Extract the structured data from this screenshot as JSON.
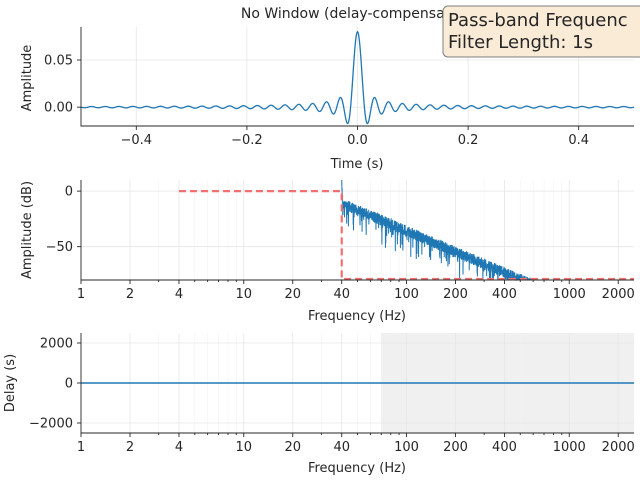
{
  "title": "No Window (delay-compensated)",
  "annotation": [
    "Pass-band Frequenc",
    "Filter Length: 1s"
  ],
  "colors": {
    "signal": "#1f77b4",
    "ideal": "#f07070",
    "shade": "#f0f0f0",
    "annotation_bg": "#faebd7"
  },
  "chart_data": [
    {
      "type": "line",
      "name": "impulse-response",
      "xlabel": "Time (s)",
      "ylabel": "Amplitude",
      "xlim": [
        -0.5,
        0.5
      ],
      "ylim": [
        -0.02,
        0.085
      ],
      "xticks": [
        -0.4,
        -0.2,
        0.0,
        0.2,
        0.4
      ],
      "xtick_labels": [
        "−0.4",
        "−0.2",
        "0.0",
        "0.2",
        "0.4"
      ],
      "yticks": [
        0.0,
        0.05
      ],
      "ytick_labels": [
        "0.00",
        "0.05"
      ],
      "peak": 0.08,
      "cutoff_hz": 40,
      "grid": true
    },
    {
      "type": "line",
      "name": "frequency-response",
      "xlabel": "Frequency (Hz)",
      "ylabel": "Amplitude (dB)",
      "xscale": "log",
      "xlim": [
        1,
        2500
      ],
      "ylim": [
        -80,
        10
      ],
      "xticks": [
        1,
        2,
        4,
        10,
        20,
        40,
        100,
        200,
        400,
        1000,
        2000
      ],
      "xtick_labels": [
        "1",
        "2",
        "4",
        "10",
        "20",
        "40",
        "100",
        "200",
        "400",
        "1000",
        "2000"
      ],
      "yticks": [
        0,
        -50
      ],
      "ytick_labels": [
        "0",
        "−50"
      ],
      "ideal": {
        "x": [
          4,
          40,
          40,
          2500
        ],
        "y": [
          0,
          0,
          -80,
          -80
        ]
      },
      "grid": true
    },
    {
      "type": "line",
      "name": "group-delay",
      "xlabel": "Frequency (Hz)",
      "ylabel": "Delay (s)",
      "xscale": "log",
      "xlim": [
        1,
        2500
      ],
      "ylim": [
        -2500,
        2500
      ],
      "xticks": [
        1,
        2,
        4,
        10,
        20,
        40,
        100,
        200,
        400,
        1000,
        2000
      ],
      "xtick_labels": [
        "1",
        "2",
        "4",
        "10",
        "20",
        "40",
        "100",
        "200",
        "400",
        "1000",
        "2000"
      ],
      "yticks": [
        2000,
        0,
        -2000
      ],
      "ytick_labels": [
        "2000",
        "0",
        "−2000"
      ],
      "delay_value": 0,
      "shaded_from_hz": 70,
      "grid": true
    }
  ]
}
